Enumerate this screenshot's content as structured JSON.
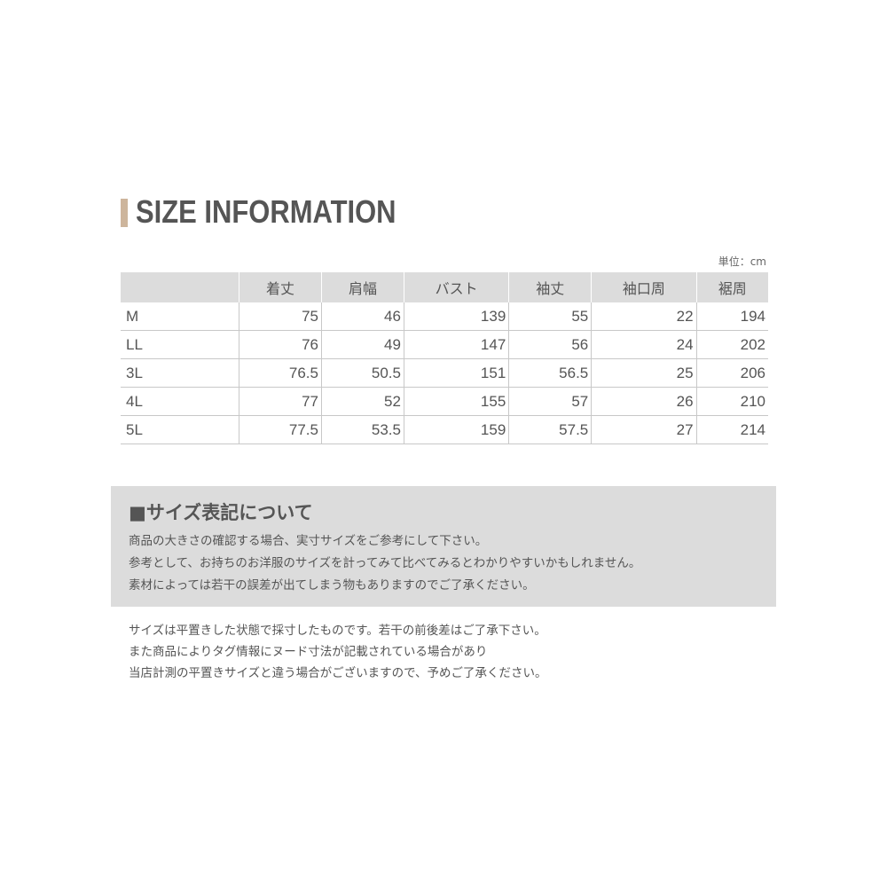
{
  "title": "SIZE INFORMATION",
  "accent_color": "#cdb59c",
  "unit": "単位：cm",
  "table": {
    "headers": [
      "",
      "着丈",
      "肩幅",
      "バスト",
      "袖丈",
      "袖口周",
      "裾周"
    ],
    "rows": [
      [
        "M",
        "75",
        "46",
        "139",
        "55",
        "22",
        "194"
      ],
      [
        "LL",
        "76",
        "49",
        "147",
        "56",
        "24",
        "202"
      ],
      [
        "3L",
        "76.5",
        "50.5",
        "151",
        "56.5",
        "25",
        "206"
      ],
      [
        "4L",
        "77",
        "52",
        "155",
        "57",
        "26",
        "210"
      ],
      [
        "5L",
        "77.5",
        "53.5",
        "159",
        "57.5",
        "27",
        "214"
      ]
    ]
  },
  "note": {
    "title": "■サイズ表記について",
    "lines": [
      "商品の大きさの確認する場合、実寸サイズをご参考にして下さい。",
      "参考として、お持ちのお洋服のサイズを計ってみて比べてみるとわかりやすいかもしれません。",
      "素材によっては若干の誤差が出てしまう物もありますのでご了承ください。"
    ]
  },
  "footer_lines": [
    "サイズは平置きした状態で採寸したものです。若干の前後差はご了承下さい。",
    "また商品によりタグ情報にヌード寸法が記載されている場合があり",
    "当店計測の平置きサイズと違う場合がございますので、予めご了承ください。"
  ]
}
